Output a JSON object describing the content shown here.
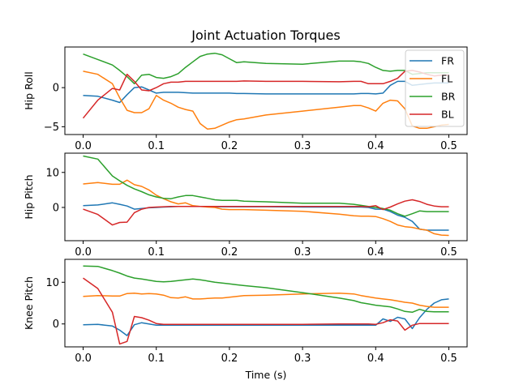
{
  "chart_data": {
    "type": "line",
    "title": "Joint Actuation Torques",
    "xlabel": "Time (s)",
    "xlim": [
      -0.025,
      0.525
    ],
    "x_ticks": [
      0.0,
      0.1,
      0.2,
      0.3,
      0.4,
      0.5
    ],
    "x_tick_labels": [
      "0.0",
      "0.1",
      "0.2",
      "0.3",
      "0.4",
      "0.5"
    ],
    "legend": {
      "placement": "top-right",
      "entries": [
        "FR",
        "FL",
        "BR",
        "BL"
      ]
    },
    "colors": {
      "FR": "#1f77b4",
      "FL": "#ff7f0e",
      "BR": "#2ca02c",
      "BL": "#d62728"
    },
    "x": [
      0.0,
      0.02,
      0.04,
      0.05,
      0.06,
      0.07,
      0.08,
      0.09,
      0.1,
      0.11,
      0.12,
      0.13,
      0.14,
      0.15,
      0.16,
      0.17,
      0.18,
      0.19,
      0.2,
      0.21,
      0.22,
      0.25,
      0.3,
      0.35,
      0.37,
      0.38,
      0.39,
      0.4,
      0.41,
      0.42,
      0.43,
      0.44,
      0.45,
      0.46,
      0.47,
      0.48,
      0.49,
      0.5
    ],
    "subplots": [
      {
        "ylabel": "Hip Roll",
        "ylim": [
          -6,
          5.2
        ],
        "y_ticks": [
          -5,
          0
        ],
        "y_tick_labels": [
          "−5",
          "0"
        ],
        "series": [
          {
            "name": "FR",
            "values": [
              -1.0,
              -1.1,
              -1.6,
              -1.9,
              -0.9,
              0.0,
              0.1,
              -0.3,
              -0.7,
              -0.6,
              -0.6,
              -0.6,
              -0.65,
              -0.7,
              -0.7,
              -0.7,
              -0.7,
              -0.7,
              -0.7,
              -0.75,
              -0.75,
              -0.8,
              -0.8,
              -0.8,
              -0.8,
              -0.75,
              -0.75,
              -0.8,
              -0.7,
              0.3,
              0.8,
              0.8,
              0.3,
              0.4,
              0.5,
              0.6,
              0.6,
              0.6
            ]
          },
          {
            "name": "FL",
            "values": [
              2.1,
              1.7,
              0.5,
              -1.3,
              -2.9,
              -3.2,
              -3.2,
              -2.7,
              -1.0,
              -1.6,
              -2.0,
              -2.5,
              -2.8,
              -3.0,
              -4.6,
              -5.3,
              -5.2,
              -4.8,
              -4.4,
              -4.1,
              -4.0,
              -3.5,
              -3.0,
              -2.5,
              -2.3,
              -2.3,
              -2.6,
              -3.0,
              -2.0,
              -1.6,
              -1.7,
              -2.7,
              -4.9,
              -5.2,
              -5.2,
              -5.0,
              -4.8,
              -4.7
            ]
          },
          {
            "name": "BR",
            "values": [
              4.3,
              3.6,
              2.9,
              2.2,
              1.4,
              0.5,
              1.6,
              1.7,
              1.3,
              1.2,
              1.4,
              1.8,
              2.6,
              3.3,
              4.0,
              4.3,
              4.4,
              4.2,
              3.7,
              3.2,
              3.3,
              3.1,
              3.0,
              3.4,
              3.4,
              3.3,
              3.1,
              2.6,
              2.2,
              2.1,
              2.2,
              2.2,
              1.7,
              1.8,
              1.9,
              1.9,
              1.9,
              1.9
            ]
          },
          {
            "name": "BL",
            "values": [
              -3.9,
              -1.6,
              -0.1,
              -0.3,
              1.7,
              0.8,
              -0.3,
              -0.4,
              0.0,
              0.5,
              0.7,
              0.7,
              0.8,
              0.8,
              0.8,
              0.8,
              0.8,
              0.8,
              0.8,
              0.8,
              0.85,
              0.8,
              0.8,
              0.75,
              0.8,
              0.8,
              0.5,
              0.5,
              0.5,
              0.8,
              1.2,
              2.1,
              2.2,
              2.0,
              1.7,
              1.5,
              1.6,
              1.6
            ]
          }
        ]
      },
      {
        "ylabel": "Hip Pitch",
        "ylim": [
          -9.5,
          15.5
        ],
        "y_ticks": [
          0,
          10
        ],
        "y_tick_labels": [
          "0",
          "10"
        ],
        "series": [
          {
            "name": "FR",
            "values": [
              0.5,
              0.7,
              1.3,
              0.9,
              0.4,
              -0.5,
              -0.3,
              -0.1,
              0.0,
              0.1,
              0.2,
              0.3,
              0.3,
              0.3,
              0.3,
              0.3,
              0.2,
              0.2,
              0.2,
              0.2,
              0.2,
              0.2,
              0.1,
              0.1,
              0.1,
              0.1,
              0.0,
              -0.5,
              -0.5,
              -1.2,
              -2.2,
              -2.8,
              -4.0,
              -6.2,
              -6.5,
              -6.5,
              -6.5,
              -6.5
            ]
          },
          {
            "name": "FL",
            "values": [
              6.7,
              7.1,
              6.6,
              6.6,
              7.8,
              6.5,
              6.0,
              5.0,
              3.5,
              2.5,
              1.6,
              1.0,
              1.3,
              0.5,
              0.3,
              0.1,
              0.0,
              -0.5,
              -0.6,
              -0.6,
              -0.6,
              -0.8,
              -1.1,
              -1.9,
              -2.4,
              -2.5,
              -2.5,
              -2.6,
              -3.2,
              -4.0,
              -5.0,
              -5.5,
              -5.7,
              -6.2,
              -6.5,
              -7.5,
              -7.9,
              -8.0
            ]
          },
          {
            "name": "BR",
            "values": [
              14.7,
              13.8,
              9.0,
              7.6,
              6.3,
              5.3,
              4.5,
              3.6,
              3.0,
              2.6,
              2.5,
              3.0,
              3.4,
              3.4,
              3.0,
              2.6,
              2.2,
              2.0,
              2.0,
              2.0,
              1.8,
              1.6,
              1.2,
              1.2,
              0.9,
              0.6,
              0.3,
              0.0,
              -0.3,
              -0.8,
              -1.8,
              -2.5,
              -1.8,
              -1.0,
              -1.2,
              -1.2,
              -1.2,
              -1.2
            ]
          },
          {
            "name": "BL",
            "values": [
              -0.5,
              -2.0,
              -5.0,
              -4.3,
              -4.2,
              -1.5,
              -0.5,
              0.0,
              0.1,
              0.2,
              0.3,
              0.3,
              0.3,
              0.3,
              0.3,
              0.3,
              0.3,
              0.3,
              0.3,
              0.3,
              0.3,
              0.3,
              0.3,
              0.3,
              0.3,
              0.3,
              0.2,
              0.5,
              -0.6,
              0.1,
              1.0,
              1.8,
              2.2,
              1.7,
              0.9,
              0.4,
              0.2,
              0.2
            ]
          }
        ]
      },
      {
        "ylabel": "Knee Pitch",
        "ylim": [
          -5.5,
          15.5
        ],
        "y_ticks": [
          0,
          10
        ],
        "y_tick_labels": [
          "0",
          "10"
        ],
        "series": [
          {
            "name": "FR",
            "values": [
              -0.2,
              -0.1,
              -0.5,
              -1.5,
              -2.8,
              -0.2,
              0.3,
              0.0,
              -0.3,
              -0.3,
              -0.3,
              -0.3,
              -0.3,
              -0.3,
              -0.3,
              -0.3,
              -0.3,
              -0.3,
              -0.3,
              -0.3,
              -0.3,
              -0.3,
              -0.3,
              -0.3,
              -0.3,
              -0.3,
              -0.3,
              -0.3,
              1.2,
              0.6,
              1.6,
              1.2,
              -1.1,
              1.5,
              3.5,
              5.0,
              5.8,
              6.0
            ]
          },
          {
            "name": "FL",
            "values": [
              6.6,
              6.8,
              6.7,
              6.7,
              7.3,
              7.4,
              7.2,
              7.3,
              7.2,
              6.9,
              6.3,
              6.2,
              6.5,
              6.0,
              6.0,
              6.1,
              6.2,
              6.2,
              6.4,
              6.6,
              6.8,
              6.9,
              7.2,
              7.4,
              7.2,
              6.8,
              6.5,
              6.2,
              6.0,
              5.8,
              5.5,
              5.2,
              5.0,
              4.5,
              4.2,
              4.0,
              4.0,
              4.0
            ]
          },
          {
            "name": "BR",
            "values": [
              13.9,
              13.8,
              12.8,
              12.2,
              11.5,
              11.0,
              10.8,
              10.5,
              10.2,
              10.1,
              10.2,
              10.4,
              10.6,
              10.8,
              10.6,
              10.3,
              10.0,
              9.8,
              9.6,
              9.4,
              9.2,
              8.7,
              7.5,
              6.2,
              5.6,
              5.1,
              4.8,
              4.5,
              4.3,
              4.1,
              3.6,
              3.0,
              2.8,
              3.5,
              3.0,
              2.9,
              2.9,
              2.9
            ]
          },
          {
            "name": "BL",
            "values": [
              11.0,
              8.5,
              2.8,
              -4.8,
              -4.2,
              1.8,
              1.5,
              0.9,
              0.1,
              -0.1,
              -0.1,
              -0.1,
              -0.1,
              -0.1,
              -0.1,
              -0.1,
              -0.1,
              -0.1,
              -0.1,
              -0.1,
              -0.1,
              -0.1,
              -0.1,
              0.0,
              0.0,
              0.0,
              0.0,
              -0.1,
              0.3,
              1.0,
              0.7,
              -1.5,
              -0.3,
              0.1,
              0.1,
              0.1,
              0.1,
              0.1
            ]
          }
        ]
      }
    ]
  }
}
